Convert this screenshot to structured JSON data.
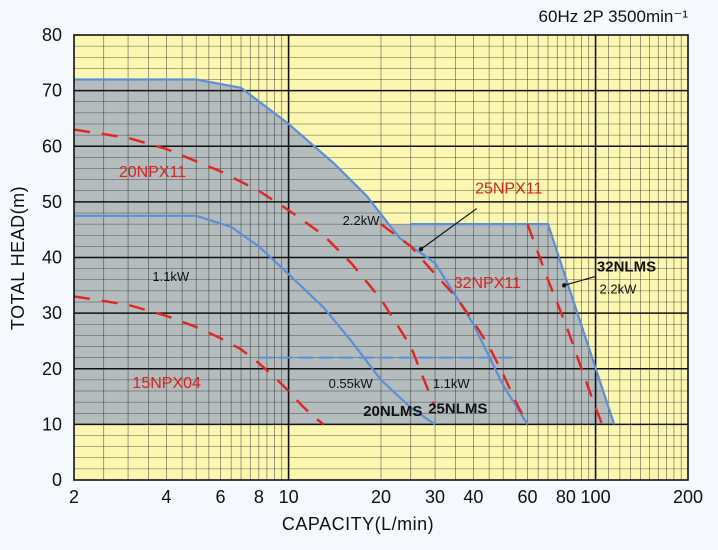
{
  "chart_data": {
    "type": "line",
    "title": "60Hz 2P 3500min⁻¹",
    "xlabel": "CAPACITY(L/min)",
    "ylabel": "TOTAL HEAD(m)",
    "xscale": "log",
    "xlim": [
      2,
      200
    ],
    "ylim": [
      0,
      80
    ],
    "x_ticks": [
      2,
      4,
      6,
      8,
      10,
      20,
      30,
      40,
      60,
      80,
      100,
      200
    ],
    "y_ticks": [
      0,
      10,
      20,
      30,
      40,
      50,
      60,
      70,
      80
    ],
    "colors": {
      "background": "#fbf7b0",
      "grid": "#2a2a2a",
      "region_fill": "#aeb6bf",
      "envelope": "#5b8fd6",
      "pump_curve": "#e0261f"
    },
    "envelopes": [
      {
        "name": "20NLMS",
        "x": [
          2,
          5,
          6.5,
          8,
          10,
          13,
          16,
          20,
          25,
          30
        ],
        "y": [
          47.5,
          47.5,
          45.5,
          42,
          37,
          31,
          25,
          18,
          13,
          10
        ]
      },
      {
        "name": "25NLMS",
        "x": [
          2,
          5,
          7,
          10,
          14,
          18,
          23,
          30,
          40,
          50,
          60
        ],
        "y": [
          72,
          72,
          70.5,
          64,
          57,
          51,
          43.5,
          39,
          28,
          17,
          10
        ]
      },
      {
        "name": "32NLMS",
        "x": [
          25,
          70,
          115
        ],
        "y": [
          46,
          46,
          10
        ]
      }
    ],
    "series": [
      {
        "name": "20NPX11",
        "x": [
          2,
          3,
          4,
          6,
          8,
          10,
          13,
          16,
          20,
          25,
          30
        ],
        "y": [
          63,
          61.5,
          59.5,
          55.5,
          52,
          48.5,
          44,
          39,
          32.5,
          24,
          13
        ]
      },
      {
        "name": "15NPX04",
        "x": [
          2,
          3,
          4,
          5,
          6,
          7,
          8,
          9,
          10,
          11,
          12,
          13
        ],
        "y": [
          33,
          31.5,
          29.5,
          27.5,
          25.5,
          23.5,
          21,
          18.5,
          16,
          13.5,
          11.5,
          10
        ]
      },
      {
        "name": "25NPX11",
        "x": [
          20,
          25,
          30,
          35,
          40,
          45,
          50,
          55,
          60
        ],
        "y": [
          46,
          42,
          37,
          33,
          28.5,
          24,
          19,
          14,
          10
        ]
      },
      {
        "name": "32NPX11",
        "x": [
          60,
          70,
          80,
          90,
          100,
          105
        ],
        "y": [
          46,
          36,
          28,
          20,
          13,
          10
        ]
      }
    ],
    "low_limit_line": {
      "x": [
        8,
        55
      ],
      "y": [
        22,
        22
      ]
    },
    "annotations": [
      {
        "text": "20NPX11",
        "style": "red",
        "x": 2.8,
        "y": 54.5
      },
      {
        "text": "2.2kW",
        "style": "black",
        "x": 15,
        "y": 45.8
      },
      {
        "text": "1.1kW",
        "style": "black",
        "x": 3.6,
        "y": 35.8
      },
      {
        "text": "0.55kW",
        "style": "black",
        "x": 13.5,
        "y": 16.5
      },
      {
        "text": "1.1kW",
        "style": "black",
        "x": 29.5,
        "y": 16.5
      },
      {
        "text": "15NPX04",
        "style": "red",
        "x": 3.1,
        "y": 16.5
      },
      {
        "text": "20NLMS",
        "style": "bold",
        "x": 17.5,
        "y": 11.5
      },
      {
        "text": "25NLMS",
        "style": "bold",
        "x": 28.5,
        "y": 12
      },
      {
        "text": "25NPX11",
        "style": "red",
        "x": 40.5,
        "y": 51.5
      },
      {
        "text": "32NPX11",
        "style": "red",
        "x": 34.5,
        "y": 34.5
      },
      {
        "text": "32NLMS",
        "style": "bold",
        "x": 101,
        "y": 37.5
      },
      {
        "text": "2.2kW",
        "style": "black",
        "x": 103,
        "y": 33.5
      }
    ],
    "leaders": [
      {
        "from": [
          41,
          48.8
        ],
        "to": [
          27,
          41.5
        ]
      },
      {
        "from": [
          100,
          36.6
        ],
        "to": [
          79,
          35
        ]
      }
    ],
    "grid": true,
    "legend": "none"
  }
}
